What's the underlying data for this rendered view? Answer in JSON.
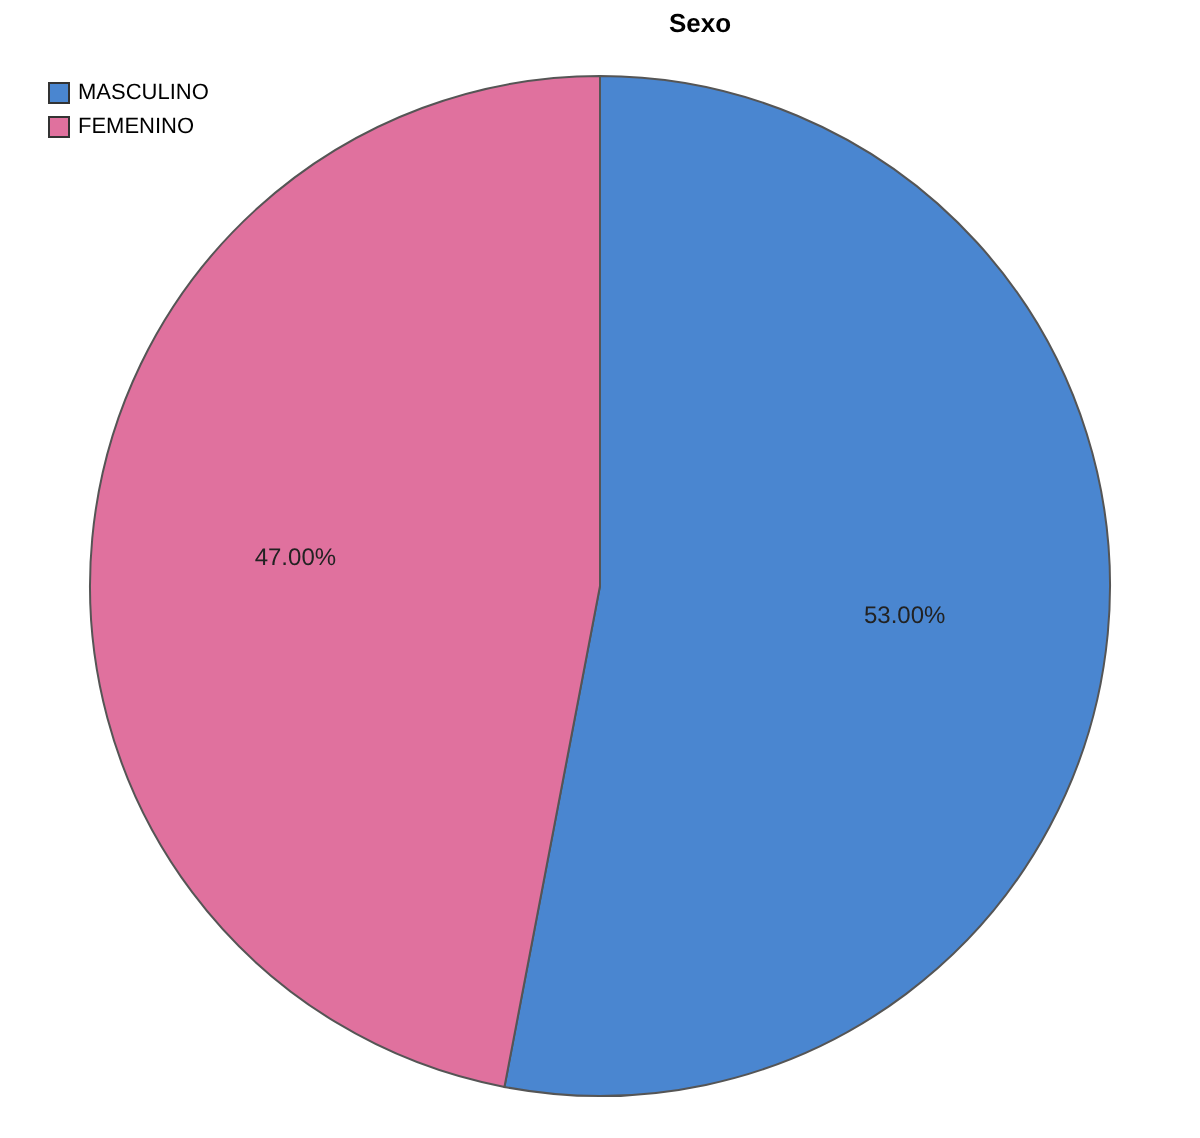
{
  "chart_data": {
    "type": "pie",
    "title": "Sexo",
    "categories": [
      "MASCULINO",
      "FEMENINO"
    ],
    "values": [
      53,
      47
    ],
    "colors": [
      "#4a86d0",
      "#e0719e"
    ],
    "value_labels": [
      "53.00%",
      "47.00%"
    ],
    "legend": "top left"
  }
}
